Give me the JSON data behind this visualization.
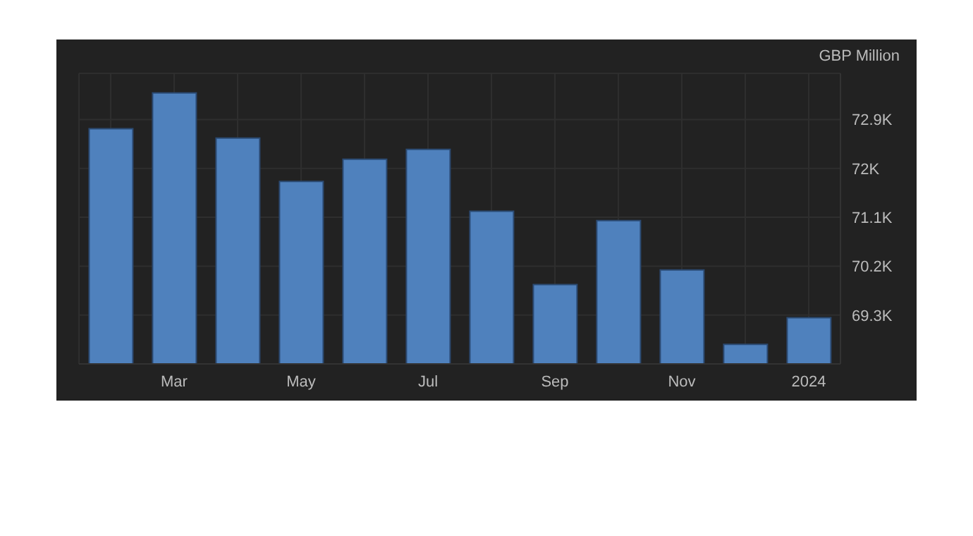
{
  "chart_data": {
    "type": "bar",
    "ylabel": "GBP Million",
    "categories": [
      null,
      "Mar",
      null,
      "May",
      null,
      "Jul",
      null,
      "Sep",
      null,
      "Nov",
      null,
      "2024"
    ],
    "values": [
      72730,
      73390,
      72560,
      71760,
      72170,
      72350,
      71210,
      69860,
      71040,
      70130,
      68760,
      69250
    ],
    "color": "#4f81bd",
    "ylim": [
      68400,
      73750
    ],
    "yticks": [
      {
        "value": 69300,
        "label": "69.3K"
      },
      {
        "value": 70200,
        "label": "70.2K"
      },
      {
        "value": 71100,
        "label": "71.1K"
      },
      {
        "value": 72000,
        "label": "72K"
      },
      {
        "value": 72900,
        "label": "72.9K"
      }
    ],
    "grid": true,
    "legend": false
  }
}
